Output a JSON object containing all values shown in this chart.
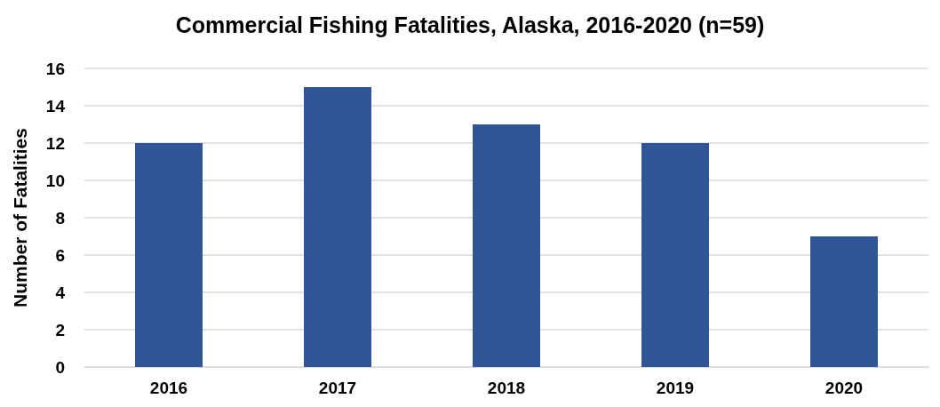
{
  "chart_data": {
    "type": "bar",
    "title": "Commercial Fishing Fatalities, Alaska, 2016-2020 (n=59)",
    "ylabel": "Number of Fatalities",
    "categories": [
      "2016",
      "2017",
      "2018",
      "2019",
      "2020"
    ],
    "values": [
      12,
      15,
      13,
      12,
      7
    ],
    "color": "#2f5597",
    "ylim": [
      0,
      16
    ],
    "yticks": [
      0,
      2,
      4,
      6,
      8,
      10,
      12,
      14,
      16
    ],
    "grid": "y"
  }
}
